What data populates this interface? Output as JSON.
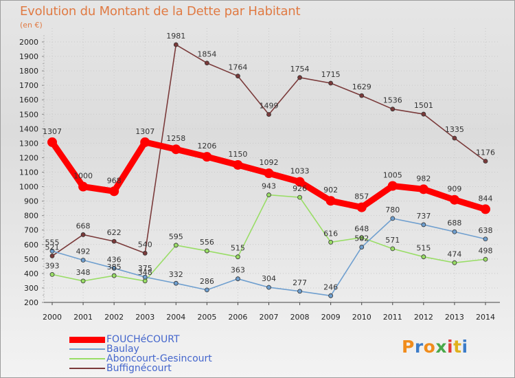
{
  "header": {
    "title": "Evolution du Montant de la Dette par Habitant",
    "subtitle": "(en €)"
  },
  "brand": {
    "logo_text": "Proxiti",
    "logo_colors": [
      "#f08c1c",
      "#3c7cc8",
      "#f08c1c",
      "#4aa84a",
      "#e03c3c",
      "#e0b01c",
      "#3c7cc8"
    ]
  },
  "chart_data": {
    "type": "line",
    "title": "Evolution du Montant de la Dette par Habitant",
    "subtitle": "(en €)",
    "xlabel": "",
    "ylabel": "",
    "x": [
      2000,
      2001,
      2002,
      2003,
      2004,
      2005,
      2006,
      2007,
      2008,
      2009,
      2010,
      2011,
      2012,
      2013,
      2014
    ],
    "ylim": [
      200,
      2000
    ],
    "yticks": [
      200,
      300,
      400,
      500,
      600,
      700,
      800,
      900,
      1000,
      1100,
      1200,
      1300,
      1400,
      1500,
      1600,
      1700,
      1800,
      1900,
      2000
    ],
    "grid": true,
    "legend_position": "bottom-left",
    "series": [
      {
        "name": "FOUCHéCOURT",
        "color": "#ff0000",
        "emphasis": true,
        "values": [
          1307,
          1000,
          968,
          1307,
          1258,
          1206,
          1150,
          1092,
          1033,
          902,
          857,
          1005,
          982,
          909,
          844
        ],
        "labels": [
          "1307",
          "1000",
          "968",
          "1307",
          "1258",
          "1206",
          "1150",
          "1092",
          "1033",
          "902",
          "857",
          "1005",
          "982",
          "909",
          "844"
        ]
      },
      {
        "name": "Baulay",
        "color": "#6f9fcf",
        "emphasis": false,
        "values": [
          555,
          492,
          436,
          375,
          332,
          286,
          363,
          304,
          277,
          246,
          582,
          780,
          737,
          688,
          638
        ],
        "labels": [
          "555",
          "492",
          "436",
          "375",
          "332",
          "286",
          "363",
          "304",
          "277",
          "246",
          "582",
          "780",
          "737",
          "688",
          "638"
        ]
      },
      {
        "name": "Aboncourt-Gesincourt",
        "color": "#99dd66",
        "emphasis": false,
        "values": [
          393,
          348,
          385,
          348,
          595,
          556,
          515,
          943,
          926,
          616,
          648,
          571,
          515,
          474,
          498
        ],
        "labels": [
          "393",
          "348",
          "385",
          "348",
          "595",
          "556",
          "515",
          "943",
          "926",
          "616",
          "648",
          "571",
          "515",
          "474",
          "498"
        ]
      },
      {
        "name": "Buffignécourt",
        "color": "#7a3a3a",
        "emphasis": false,
        "values": [
          521,
          668,
          622,
          540,
          1981,
          1854,
          1764,
          1499,
          1754,
          1715,
          1629,
          1536,
          1501,
          1335,
          1176
        ],
        "labels": [
          "521",
          "668",
          "622",
          "540",
          "1981",
          "1854",
          "1764",
          "1499",
          "1754",
          "1715",
          "1629",
          "1536",
          "1501",
          "1335",
          "1176"
        ]
      }
    ]
  }
}
